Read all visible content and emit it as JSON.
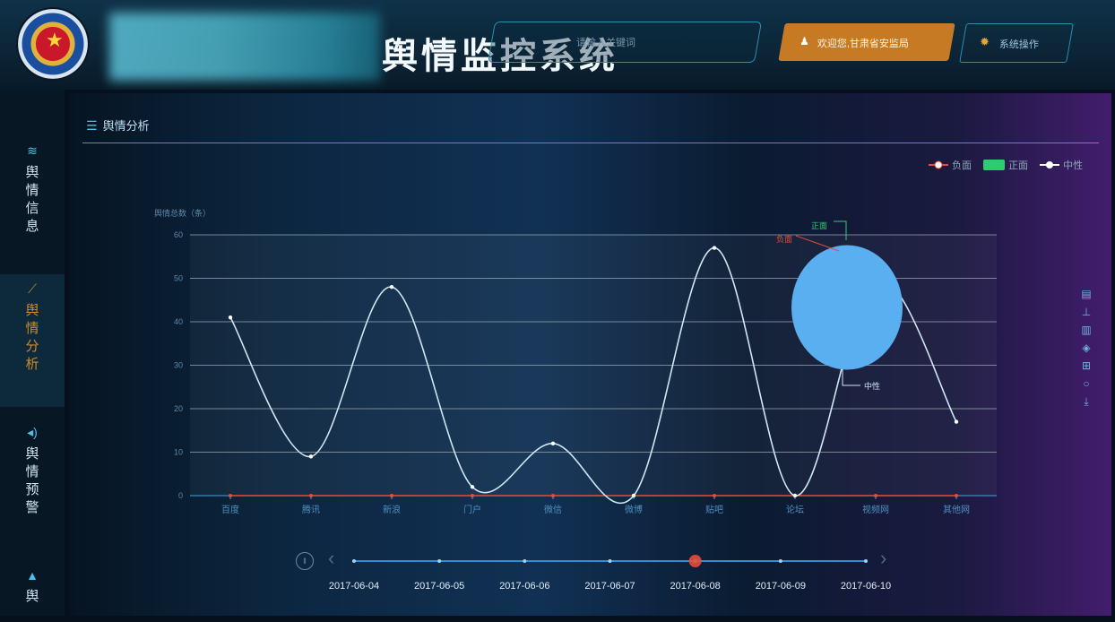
{
  "header": {
    "title": "舆情监控系统",
    "search_placeholder": "请输入关键词",
    "welcome_label": "欢迎您,甘肃省安监局",
    "system_label": "系统操作"
  },
  "sidebar": {
    "items": [
      {
        "label": "舆情信息"
      },
      {
        "label": "舆情分析"
      },
      {
        "label": "舆情预警"
      },
      {
        "label": "舆"
      }
    ]
  },
  "main": {
    "section_title": "舆情分析"
  },
  "colors": {
    "accent": "#2aa0cc",
    "welcome": "#c67a24",
    "line": "#cfe6f5",
    "negative": "#e74c3c",
    "positive": "#2ecc71",
    "neutral": "#ffffff",
    "pie": "#5aaff0"
  },
  "icons": {
    "wifi": "wifi-icon",
    "chart": "line-chart-icon",
    "warning": "speaker-icon",
    "area": "area-chart-icon",
    "user": "user-icon",
    "gear": "gear-icon",
    "menu": "menu-icon",
    "toolbox": [
      "data-view-icon",
      "line-icon",
      "bar-icon",
      "stack-icon",
      "tiled-icon",
      "restore-icon",
      "save-icon"
    ]
  },
  "chart_data": {
    "type": "line",
    "ylabel": "舆情总数（条）",
    "ylim": [
      0,
      60
    ],
    "yticks": [
      0,
      10,
      20,
      30,
      40,
      50,
      60
    ],
    "categories": [
      "百度",
      "腾讯",
      "新浪",
      "门户",
      "微信",
      "微博",
      "贴吧",
      "论坛",
      "视频网",
      "其他网"
    ],
    "values": [
      41,
      9,
      48,
      2,
      12,
      0,
      57,
      0,
      50,
      17
    ],
    "legend": [
      "负面",
      "正面",
      "中性"
    ],
    "legend_position": "top-right",
    "grid": true,
    "negative_series": [
      0,
      0,
      0,
      0,
      0,
      0,
      0,
      0,
      0,
      0
    ],
    "pie": {
      "labels": [
        "负面",
        "正面",
        "中性"
      ],
      "values": [
        0,
        0,
        1
      ]
    },
    "timeline": {
      "dates": [
        "2017-06-04",
        "2017-06-05",
        "2017-06-06",
        "2017-06-07",
        "2017-06-08",
        "2017-06-09",
        "2017-06-10"
      ],
      "current": "2017-06-08"
    }
  }
}
